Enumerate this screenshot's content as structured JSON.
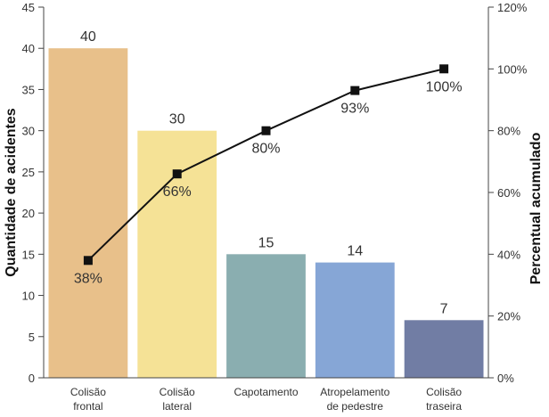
{
  "chart_data": {
    "type": "bar",
    "categories": [
      [
        "Colisão",
        "frontal"
      ],
      [
        "Colisão",
        "lateral"
      ],
      [
        "Capotamento"
      ],
      [
        "Atropelamento",
        "de pedestre"
      ],
      [
        "Colisão",
        "traseira"
      ]
    ],
    "series": [
      {
        "values": [
          40,
          30,
          15,
          14,
          7
        ],
        "value_labels": [
          "40",
          "30",
          "15",
          "14",
          "7"
        ],
        "colors": [
          "#e8c08a",
          "#f5e296",
          "#8aaeb0",
          "#86a6d6",
          "#717da4"
        ]
      },
      {
        "type": "line",
        "axis": "right",
        "values": [
          38,
          66,
          80,
          93,
          100
        ],
        "value_labels": [
          "38%",
          "66%",
          "80%",
          "93%",
          "100%"
        ],
        "color": "#111111"
      }
    ],
    "ylabel": "Quantidade de acidentes",
    "y2label": "Percentual acumulado",
    "ylim": [
      0,
      45
    ],
    "y2lim": [
      0,
      120
    ],
    "yticks": [
      "0",
      "5",
      "10",
      "15",
      "20",
      "25",
      "30",
      "35",
      "40",
      "45"
    ],
    "y2ticks": [
      "0%",
      "20%",
      "40%",
      "60%",
      "80%",
      "100%",
      "120%"
    ],
    "grid": false,
    "legend": "none"
  }
}
